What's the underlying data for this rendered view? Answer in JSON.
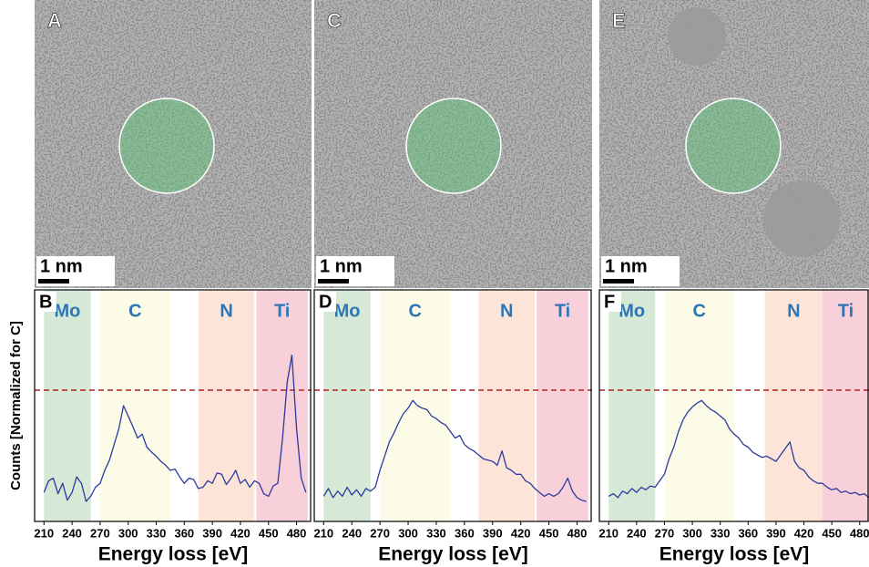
{
  "images": [
    {
      "label": "A",
      "scale_bar": "1 nm"
    },
    {
      "label": "C",
      "scale_bar": "1 nm"
    },
    {
      "label": "E",
      "scale_bar": "1 nm"
    }
  ],
  "chart_data": [
    {
      "type": "line",
      "panel_label": "B",
      "ylabel": "Counts [Normalized for C]",
      "xlabel": "Energy loss [eV]",
      "xlim": [
        200,
        496
      ],
      "ylim": [
        0,
        1.76
      ],
      "xticks": [
        210,
        240,
        270,
        300,
        330,
        360,
        390,
        420,
        450,
        480
      ],
      "reference_line": 1,
      "reference_color": "#b22222",
      "regions": [
        {
          "label": "Mo",
          "start": 210,
          "end": 260,
          "color": "#d6e9d6"
        },
        {
          "label": "C",
          "start": 270,
          "end": 345,
          "color": "#fbfbe8"
        },
        {
          "label": "N",
          "start": 375,
          "end": 435,
          "color": "#fce5d8"
        },
        {
          "label": "Ti",
          "start": 437,
          "end": 492,
          "color": "#f7d0da"
        }
      ],
      "x": [
        210,
        215,
        220,
        225,
        230,
        235,
        240,
        245,
        250,
        255,
        260,
        265,
        270,
        275,
        280,
        285,
        290,
        295,
        300,
        305,
        310,
        315,
        320,
        325,
        330,
        335,
        340,
        345,
        350,
        355,
        360,
        365,
        370,
        375,
        380,
        385,
        390,
        395,
        400,
        405,
        410,
        415,
        420,
        425,
        430,
        435,
        440,
        445,
        450,
        455,
        460,
        465,
        470,
        475,
        480,
        485,
        490
      ],
      "series": [
        {
          "color": "#2b3aa0",
          "values": [
            0.21,
            0.3,
            0.32,
            0.2,
            0.28,
            0.15,
            0.21,
            0.33,
            0.28,
            0.14,
            0.18,
            0.25,
            0.28,
            0.38,
            0.46,
            0.58,
            0.7,
            0.88,
            0.8,
            0.72,
            0.63,
            0.66,
            0.56,
            0.52,
            0.49,
            0.45,
            0.42,
            0.38,
            0.39,
            0.33,
            0.28,
            0.32,
            0.31,
            0.24,
            0.25,
            0.3,
            0.28,
            0.36,
            0.35,
            0.27,
            0.32,
            0.38,
            0.28,
            0.31,
            0.25,
            0.3,
            0.28,
            0.2,
            0.18,
            0.26,
            0.28,
            0.63,
            1.06,
            1.27,
            0.7,
            0.32,
            0.21
          ]
        }
      ]
    },
    {
      "type": "line",
      "panel_label": "D",
      "xlabel": "Energy loss [eV]",
      "xlim": [
        200,
        496
      ],
      "ylim": [
        0,
        1.76
      ],
      "xticks": [
        210,
        240,
        270,
        300,
        330,
        360,
        390,
        420,
        450,
        480
      ],
      "reference_line": 1,
      "reference_color": "#b22222",
      "regions": [
        {
          "label": "Mo",
          "start": 210,
          "end": 260,
          "color": "#d6e9d6"
        },
        {
          "label": "C",
          "start": 270,
          "end": 345,
          "color": "#fbfbe8"
        },
        {
          "label": "N",
          "start": 375,
          "end": 435,
          "color": "#fce5d8"
        },
        {
          "label": "Ti",
          "start": 437,
          "end": 492,
          "color": "#f7d0da"
        }
      ],
      "x": [
        210,
        215,
        220,
        225,
        230,
        235,
        240,
        245,
        250,
        255,
        260,
        265,
        270,
        275,
        280,
        285,
        290,
        295,
        300,
        305,
        310,
        315,
        320,
        325,
        330,
        335,
        340,
        345,
        350,
        355,
        360,
        365,
        370,
        375,
        380,
        385,
        390,
        395,
        400,
        405,
        410,
        415,
        420,
        425,
        430,
        435,
        440,
        445,
        450,
        455,
        460,
        465,
        470,
        475,
        480,
        485,
        490
      ],
      "series": [
        {
          "color": "#2b3aa0",
          "values": [
            0.18,
            0.24,
            0.17,
            0.22,
            0.18,
            0.25,
            0.19,
            0.23,
            0.18,
            0.24,
            0.22,
            0.25,
            0.38,
            0.49,
            0.6,
            0.67,
            0.75,
            0.82,
            0.86,
            0.92,
            0.88,
            0.86,
            0.85,
            0.8,
            0.78,
            0.75,
            0.73,
            0.68,
            0.63,
            0.65,
            0.58,
            0.55,
            0.53,
            0.5,
            0.47,
            0.46,
            0.45,
            0.42,
            0.53,
            0.4,
            0.38,
            0.35,
            0.35,
            0.3,
            0.28,
            0.24,
            0.21,
            0.18,
            0.2,
            0.18,
            0.2,
            0.25,
            0.32,
            0.22,
            0.17,
            0.15,
            0.14
          ]
        }
      ]
    },
    {
      "type": "line",
      "panel_label": "F",
      "xlabel": "Energy loss [eV]",
      "xlim": [
        200,
        490
      ],
      "ylim": [
        0,
        1.76
      ],
      "xticks": [
        210,
        240,
        270,
        300,
        330,
        360,
        390,
        420,
        450,
        480
      ],
      "reference_line": 1,
      "reference_color": "#b22222",
      "regions": [
        {
          "label": "Mo",
          "start": 210,
          "end": 260,
          "color": "#d6e9d6"
        },
        {
          "label": "C",
          "start": 270,
          "end": 345,
          "color": "#fbfbe8"
        },
        {
          "label": "N",
          "start": 378,
          "end": 440,
          "color": "#fce5d8"
        },
        {
          "label": "Ti",
          "start": 440,
          "end": 490,
          "color": "#f7d0da"
        }
      ],
      "x": [
        210,
        215,
        220,
        225,
        230,
        235,
        240,
        245,
        250,
        255,
        260,
        265,
        270,
        275,
        280,
        285,
        290,
        295,
        300,
        305,
        310,
        315,
        320,
        325,
        330,
        335,
        340,
        345,
        350,
        355,
        360,
        365,
        370,
        375,
        380,
        385,
        390,
        395,
        400,
        405,
        410,
        415,
        420,
        425,
        430,
        435,
        440,
        445,
        450,
        455,
        460,
        465,
        470,
        475,
        480,
        485,
        490
      ],
      "series": [
        {
          "color": "#2b3aa0",
          "values": [
            0.18,
            0.2,
            0.17,
            0.22,
            0.2,
            0.24,
            0.21,
            0.25,
            0.23,
            0.26,
            0.25,
            0.3,
            0.35,
            0.47,
            0.56,
            0.68,
            0.77,
            0.83,
            0.87,
            0.9,
            0.92,
            0.88,
            0.85,
            0.83,
            0.8,
            0.77,
            0.7,
            0.66,
            0.63,
            0.58,
            0.56,
            0.52,
            0.5,
            0.48,
            0.49,
            0.47,
            0.45,
            0.5,
            0.55,
            0.6,
            0.45,
            0.4,
            0.38,
            0.33,
            0.3,
            0.28,
            0.28,
            0.25,
            0.23,
            0.24,
            0.21,
            0.22,
            0.2,
            0.21,
            0.19,
            0.2,
            0.17
          ]
        }
      ]
    }
  ]
}
